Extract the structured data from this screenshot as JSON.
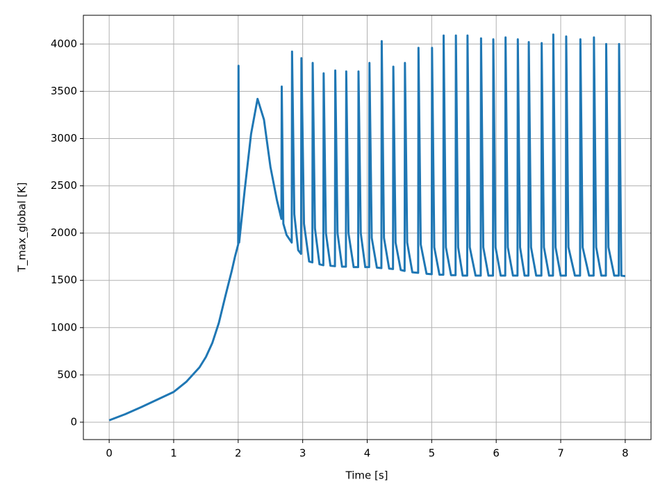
{
  "chart_data": {
    "type": "line",
    "xlabel": "Time [s]",
    "ylabel": "T_max_global [K]",
    "x": [
      0,
      0.25,
      0.5,
      0.75,
      1,
      1.2,
      1.4,
      1.5,
      1.6,
      1.7,
      1.8,
      1.9,
      1.95,
      2.0,
      2.005,
      2.015,
      2.1,
      2.2,
      2.3,
      2.4,
      2.5,
      2.6,
      2.67,
      2.675,
      2.7,
      2.75,
      2.83,
      2.835,
      2.87,
      2.93,
      2.975,
      2.98,
      3.02,
      3.1,
      3.15,
      3.155,
      3.19,
      3.26,
      3.32,
      3.325,
      3.36,
      3.43,
      3.5,
      3.505,
      3.54,
      3.61,
      3.67,
      3.675,
      3.71,
      3.79,
      3.86,
      3.865,
      3.9,
      3.97,
      4.03,
      4.035,
      4.07,
      4.15,
      4.22,
      4.225,
      4.26,
      4.34,
      4.4,
      4.405,
      4.44,
      4.52,
      4.58,
      4.585,
      4.62,
      4.7,
      4.79,
      4.795,
      4.83,
      4.92,
      5.0,
      5.005,
      5.04,
      5.12,
      5.18,
      5.185,
      5.22,
      5.3,
      5.37,
      5.375,
      5.41,
      5.48,
      5.55,
      5.555,
      5.59,
      5.68,
      5.76,
      5.765,
      5.8,
      5.88,
      5.95,
      5.955,
      5.99,
      6.07,
      6.14,
      6.145,
      6.18,
      6.26,
      6.33,
      6.335,
      6.37,
      6.44,
      6.5,
      6.505,
      6.54,
      6.62,
      6.7,
      6.705,
      6.74,
      6.82,
      6.88,
      6.885,
      6.92,
      7.0,
      7.08,
      7.085,
      7.12,
      7.22,
      7.3,
      7.305,
      7.34,
      7.44,
      7.51,
      7.515,
      7.55,
      7.63,
      7.7,
      7.705,
      7.74,
      7.83,
      7.9,
      7.905,
      7.94,
      8.0
    ],
    "series": [
      {
        "color": "#1f77b4",
        "values": [
          20,
          85,
          160,
          240,
          320,
          430,
          580,
          690,
          840,
          1050,
          1330,
          1600,
          1750,
          1880,
          3770,
          1900,
          2450,
          3050,
          3420,
          3200,
          2700,
          2350,
          2150,
          3550,
          2100,
          1980,
          1900,
          3920,
          2200,
          1820,
          1780,
          3850,
          2100,
          1700,
          1690,
          3800,
          2050,
          1670,
          1660,
          3690,
          2000,
          1655,
          1650,
          3720,
          2000,
          1645,
          1645,
          3710,
          2000,
          1640,
          1640,
          3710,
          2000,
          1640,
          1640,
          3800,
          1950,
          1635,
          1630,
          4030,
          1950,
          1625,
          1620,
          3760,
          1900,
          1610,
          1600,
          3800,
          1900,
          1585,
          1580,
          3960,
          1880,
          1570,
          1565,
          3960,
          1850,
          1560,
          1560,
          4090,
          1850,
          1555,
          1555,
          4090,
          1850,
          1550,
          1550,
          4090,
          1850,
          1550,
          1550,
          4060,
          1850,
          1550,
          1550,
          4050,
          1850,
          1550,
          1550,
          4070,
          1850,
          1550,
          1550,
          4050,
          1850,
          1550,
          1550,
          4020,
          1850,
          1550,
          1550,
          4010,
          1850,
          1550,
          1550,
          4100,
          1850,
          1550,
          1550,
          4080,
          1850,
          1550,
          1550,
          4050,
          1850,
          1550,
          1550,
          4070,
          1850,
          1550,
          1550,
          4000,
          1850,
          1550,
          1550,
          4000,
          1550,
          1545
        ]
      }
    ],
    "xlim": [
      -0.4,
      8.4
    ],
    "ylim": [
      -184,
      4304
    ],
    "xticks": [
      0,
      1,
      2,
      3,
      4,
      5,
      6,
      7,
      8
    ],
    "yticks": [
      0,
      500,
      1000,
      1500,
      2000,
      2500,
      3000,
      3500,
      4000
    ],
    "grid": true
  }
}
